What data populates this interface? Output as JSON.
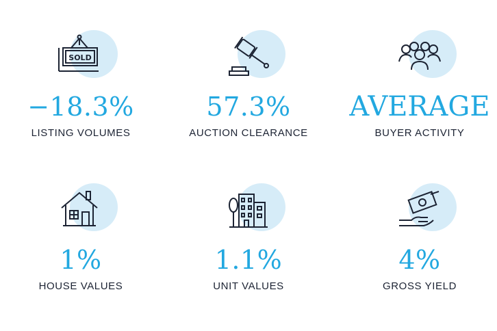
{
  "accent_color": "#22a8e0",
  "icon_bg_color": "#d6ecf8",
  "text_color": "#1c2333",
  "stats": [
    {
      "icon": "sold-sign-icon",
      "value": "−18.3%",
      "label": "LISTING VOLUMES"
    },
    {
      "icon": "auction-gavel-icon",
      "value": "57.3%",
      "label": "AUCTION CLEARANCE"
    },
    {
      "icon": "people-group-icon",
      "value": "AVERAGE",
      "label": "BUYER ACTIVITY"
    },
    {
      "icon": "house-icon",
      "value": "1%",
      "label": "HOUSE VALUES"
    },
    {
      "icon": "apartment-building-icon",
      "value": "1.1%",
      "label": "UNIT VALUES"
    },
    {
      "icon": "money-hand-icon",
      "value": "4%",
      "label": "GROSS YIELD"
    }
  ],
  "sold_sign_text": "SOLD"
}
